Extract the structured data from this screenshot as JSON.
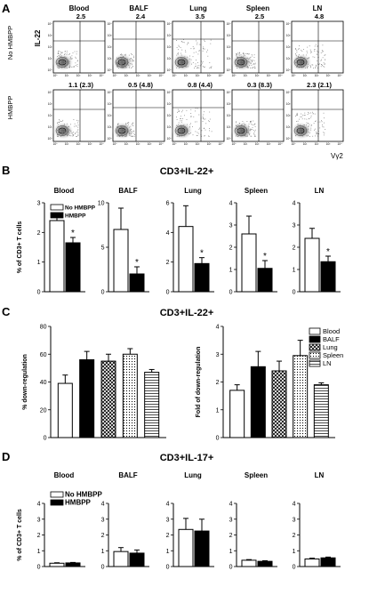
{
  "panel_labels": [
    "A",
    "B",
    "C",
    "D"
  ],
  "tissues": [
    "Blood",
    "BALF",
    "Lung",
    "Spleen",
    "LN"
  ],
  "flow": {
    "y_axis_label": "IL-22",
    "x_axis_label": "Vγ2",
    "rows": [
      {
        "label": "No HMBPP",
        "values": [
          "2.5",
          "2.4",
          "3.5",
          "2.5",
          "4.8"
        ]
      },
      {
        "label": "HMBPP",
        "values": [
          "1.1 (2.3)",
          "0.5 (4.8)",
          "0.8 (4.4)",
          "0.3 (8.3)",
          "2.3 (2.1)"
        ]
      }
    ],
    "tick_labels": [
      "10⁴",
      "10³",
      "10²",
      "10¹",
      "10⁰"
    ]
  },
  "panel_b": {
    "title": "CD3+IL-22+"
  },
  "panel_c": {
    "title": "CD3+IL-22+"
  },
  "panel_d": {
    "title": "CD3+IL-17+"
  },
  "chart_data": [
    {
      "type": "bar",
      "panel": "B",
      "ylabel": "% of CD3+ T cells",
      "categories": [
        "Blood",
        "BALF",
        "Lung",
        "Spleen",
        "LN"
      ],
      "series": [
        {
          "name": "No HMBPP",
          "values": [
            2.4,
            7.0,
            4.4,
            2.6,
            2.4
          ],
          "errors": [
            0.25,
            2.4,
            1.4,
            0.8,
            0.45
          ],
          "color": "#ffffff"
        },
        {
          "name": "HMBPP",
          "values": [
            1.65,
            2.0,
            1.9,
            1.05,
            1.35
          ],
          "errors": [
            0.18,
            0.8,
            0.4,
            0.35,
            0.25
          ],
          "color": "#000000"
        }
      ],
      "ylim": [
        [
          0,
          3
        ],
        [
          0,
          10
        ],
        [
          0,
          6
        ],
        [
          0,
          4
        ],
        [
          0,
          4
        ]
      ],
      "yticks": [
        [
          "0",
          "1",
          "2",
          "3"
        ],
        [
          "0",
          "5",
          "10"
        ],
        [
          "0",
          "2",
          "4",
          "6"
        ],
        [
          "0",
          "1",
          "2",
          "3",
          "4"
        ],
        [
          "0",
          "1",
          "2",
          "3",
          "4"
        ]
      ],
      "significance": [
        "*",
        "*",
        "*",
        "*",
        "*"
      ]
    },
    {
      "type": "bar",
      "panel": "C-left",
      "ylabel": "% down-regulation",
      "categories": [
        "Blood",
        "BALF",
        "Lung",
        "Spleen",
        "LN"
      ],
      "values": [
        39,
        56,
        55,
        60,
        47
      ],
      "errors": [
        6,
        6,
        5,
        4,
        2
      ],
      "ylim": [
        0,
        80
      ],
      "yticks": [
        "0",
        "20",
        "40",
        "60",
        "80"
      ]
    },
    {
      "type": "bar",
      "panel": "C-right",
      "ylabel": "Fold of down-regulation",
      "categories": [
        "Blood",
        "BALF",
        "Lung",
        "Spleen",
        "LN"
      ],
      "values": [
        1.7,
        2.55,
        2.4,
        2.95,
        1.9
      ],
      "errors": [
        0.2,
        0.55,
        0.35,
        0.55,
        0.07
      ],
      "ylim": [
        0,
        4
      ],
      "yticks": [
        "0",
        "1",
        "2",
        "3",
        "4"
      ],
      "legend": [
        "Blood",
        "BALF",
        "Lung",
        "Spleen",
        "LN"
      ]
    },
    {
      "type": "bar",
      "panel": "D",
      "ylabel": "% of CD3+ T cells",
      "categories": [
        "Blood",
        "BALF",
        "Lung",
        "Spleen",
        "LN"
      ],
      "series": [
        {
          "name": "No HMBPP",
          "values": [
            0.21,
            0.95,
            2.35,
            0.4,
            0.48
          ],
          "errors": [
            0.03,
            0.25,
            0.7,
            0.04,
            0.05
          ],
          "color": "#ffffff"
        },
        {
          "name": "HMBPP",
          "values": [
            0.23,
            0.85,
            2.25,
            0.33,
            0.55
          ],
          "errors": [
            0.03,
            0.2,
            0.75,
            0.04,
            0.05
          ],
          "color": "#000000"
        }
      ],
      "ylim": [
        [
          0,
          4
        ],
        [
          0,
          4
        ],
        [
          0,
          4
        ],
        [
          0,
          4
        ],
        [
          0,
          4
        ]
      ],
      "yticks": [
        "0",
        "1",
        "2",
        "3",
        "4"
      ]
    }
  ]
}
